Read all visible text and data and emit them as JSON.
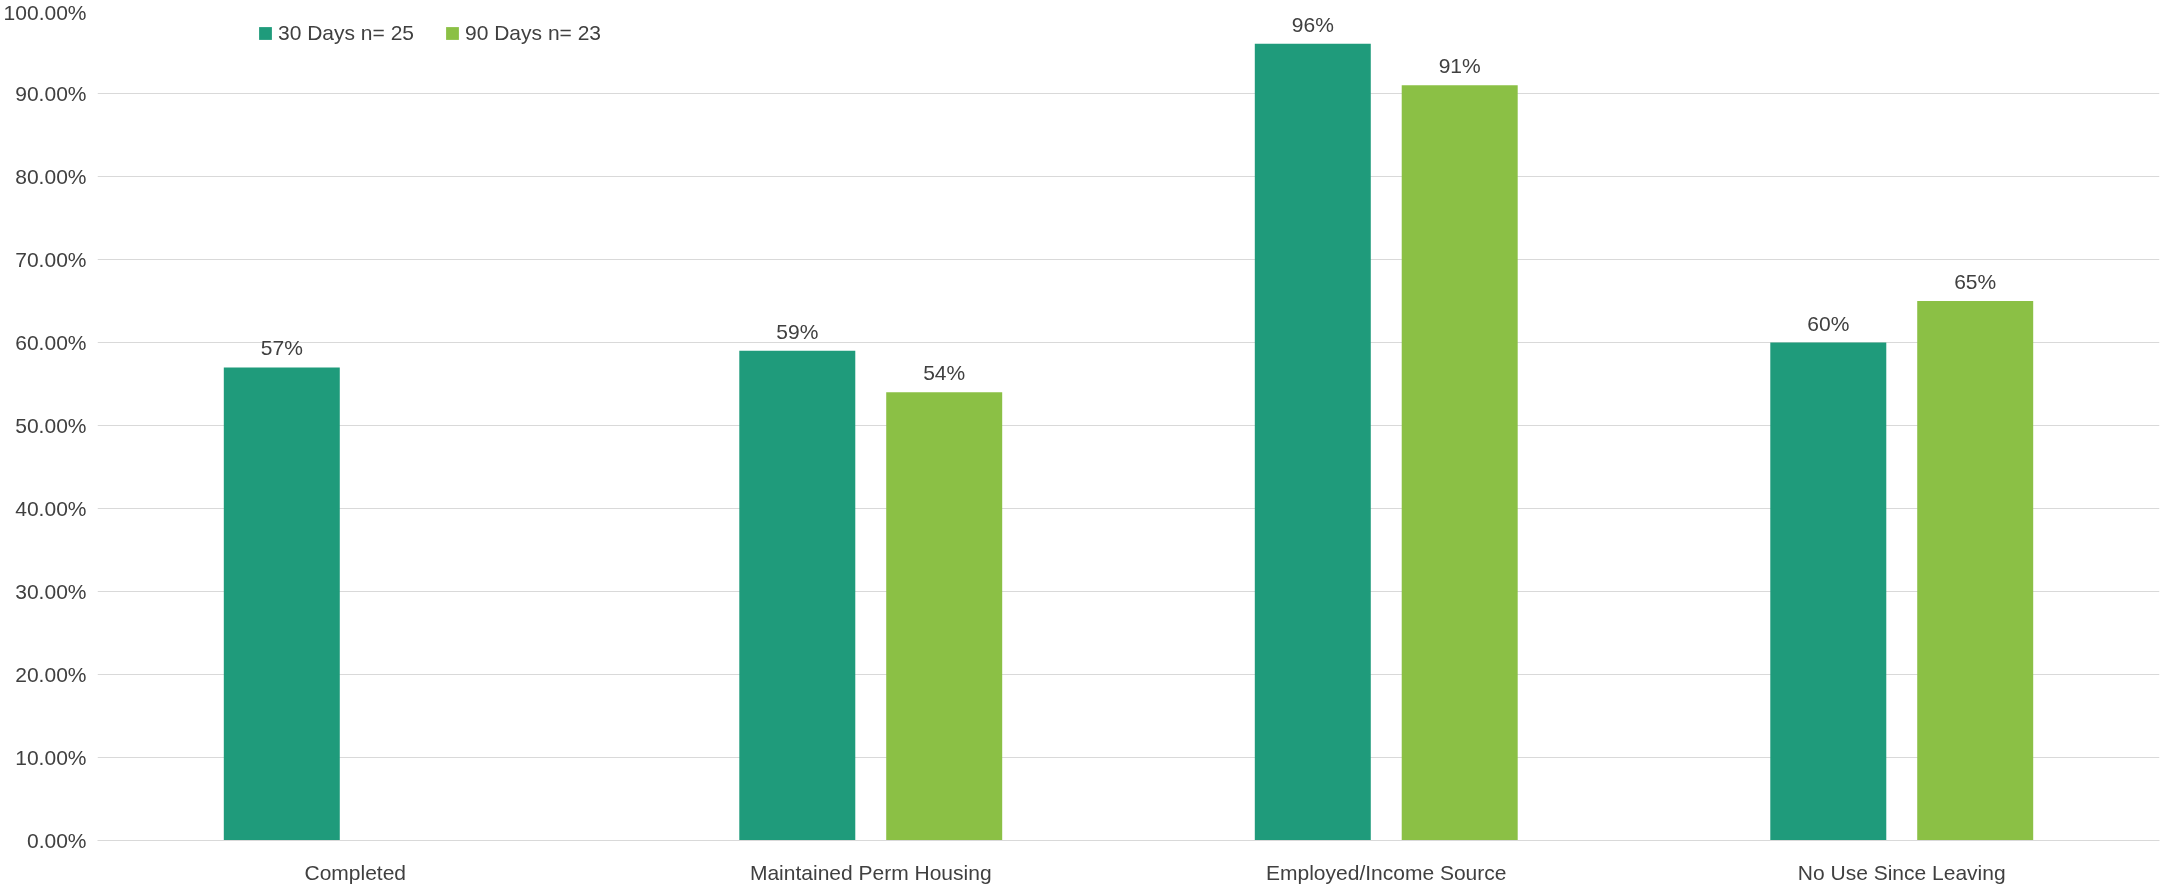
{
  "chart_data": {
    "type": "bar",
    "categories": [
      "Completed",
      "Maintained Perm Housing",
      "Employed/Income Source",
      "No Use Since Leaving"
    ],
    "series": [
      {
        "name": "30 Days n= 25",
        "color": "#1f9b7b",
        "values": [
          57,
          59,
          96,
          60
        ],
        "value_labels": [
          "57%",
          "59%",
          "96%",
          "60%"
        ]
      },
      {
        "name": "90 Days n= 23",
        "color": "#8bc045",
        "values": [
          null,
          54,
          91,
          65
        ],
        "value_labels": [
          null,
          "54%",
          "91%",
          "65%"
        ]
      }
    ],
    "ylim": [
      0,
      100
    ],
    "yticks": [
      {
        "value": 0,
        "label": "0.00%"
      },
      {
        "value": 10,
        "label": "10.00%"
      },
      {
        "value": 20,
        "label": "20.00%"
      },
      {
        "value": 30,
        "label": "30.00%"
      },
      {
        "value": 40,
        "label": "40.00%"
      },
      {
        "value": 50,
        "label": "50.00%"
      },
      {
        "value": 60,
        "label": "60.00%"
      },
      {
        "value": 70,
        "label": "70.00%"
      },
      {
        "value": 80,
        "label": "80.00%"
      },
      {
        "value": 90,
        "label": "90.00%"
      },
      {
        "value": 100,
        "label": "100.00%"
      }
    ],
    "grid": "y",
    "legend": "top left"
  }
}
